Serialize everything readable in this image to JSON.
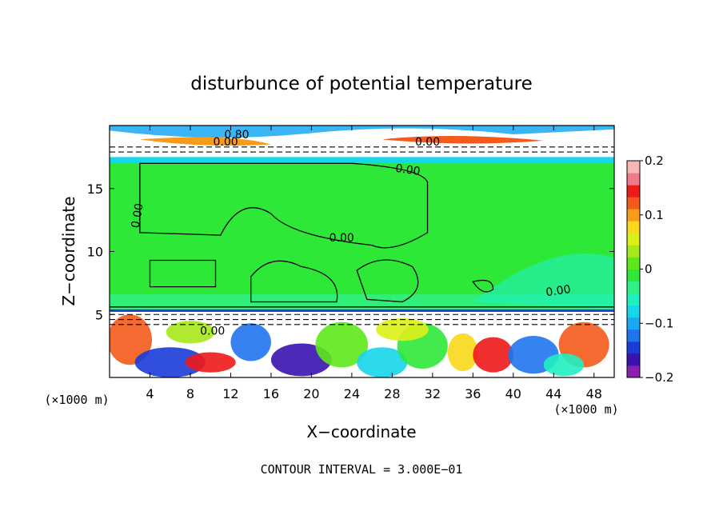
{
  "chart_data": {
    "type": "heatmap",
    "title": "disturbunce of potential temperature",
    "xlabel": "X−coordinate",
    "ylabel": "Z−coordinate",
    "x_unit_left": "(×1000 m)",
    "x_unit_right": "(×1000 m)",
    "footer": "CONTOUR INTERVAL = 3.000E−01",
    "xlim": [
      0,
      50
    ],
    "ylim": [
      0,
      20
    ],
    "x_ticks": [
      4,
      8,
      12,
      16,
      20,
      24,
      28,
      32,
      36,
      40,
      44,
      48
    ],
    "y_ticks": [
      5,
      10,
      15
    ],
    "colorbar": {
      "range": [
        -0.2,
        0.2
      ],
      "tick_values": [
        0.2,
        0.1,
        0,
        -0.1,
        -0.2
      ],
      "tick_labels": [
        "0.2",
        "0.1",
        "0",
        "−0.1",
        "−0.2"
      ],
      "colors": [
        "#8a1fb0",
        "#3a12b0",
        "#1a3cd8",
        "#1f74ee",
        "#1aa8f5",
        "#16d6ea",
        "#20f0c0",
        "#30f088",
        "#2ee838",
        "#5ee81a",
        "#a6e81a",
        "#dcef18",
        "#f8d81a",
        "#f89a1a",
        "#f45a1a",
        "#ee1a1a",
        "#f07a8a",
        "#f8b8b8"
      ]
    },
    "contour_labels": [
      {
        "text": "0.00",
        "x": 11.5,
        "y": 18.4,
        "angle": 0
      },
      {
        "text": "0.80",
        "x": 12.6,
        "y": 19.0,
        "angle": 0
      },
      {
        "text": "0.00",
        "x": 31.5,
        "y": 18.4,
        "angle": 0
      },
      {
        "text": "0.00",
        "x": 29.5,
        "y": 16.2,
        "angle": 8
      },
      {
        "text": "0.00",
        "x": 3.1,
        "y": 12.8,
        "angle": -80
      },
      {
        "text": "0.00",
        "x": 23.0,
        "y": 10.8,
        "angle": 0
      },
      {
        "text": "0.00",
        "x": 44.5,
        "y": 6.6,
        "angle": -8
      },
      {
        "text": "0.00",
        "x": 10.2,
        "y": 3.4,
        "angle": 0
      }
    ]
  }
}
